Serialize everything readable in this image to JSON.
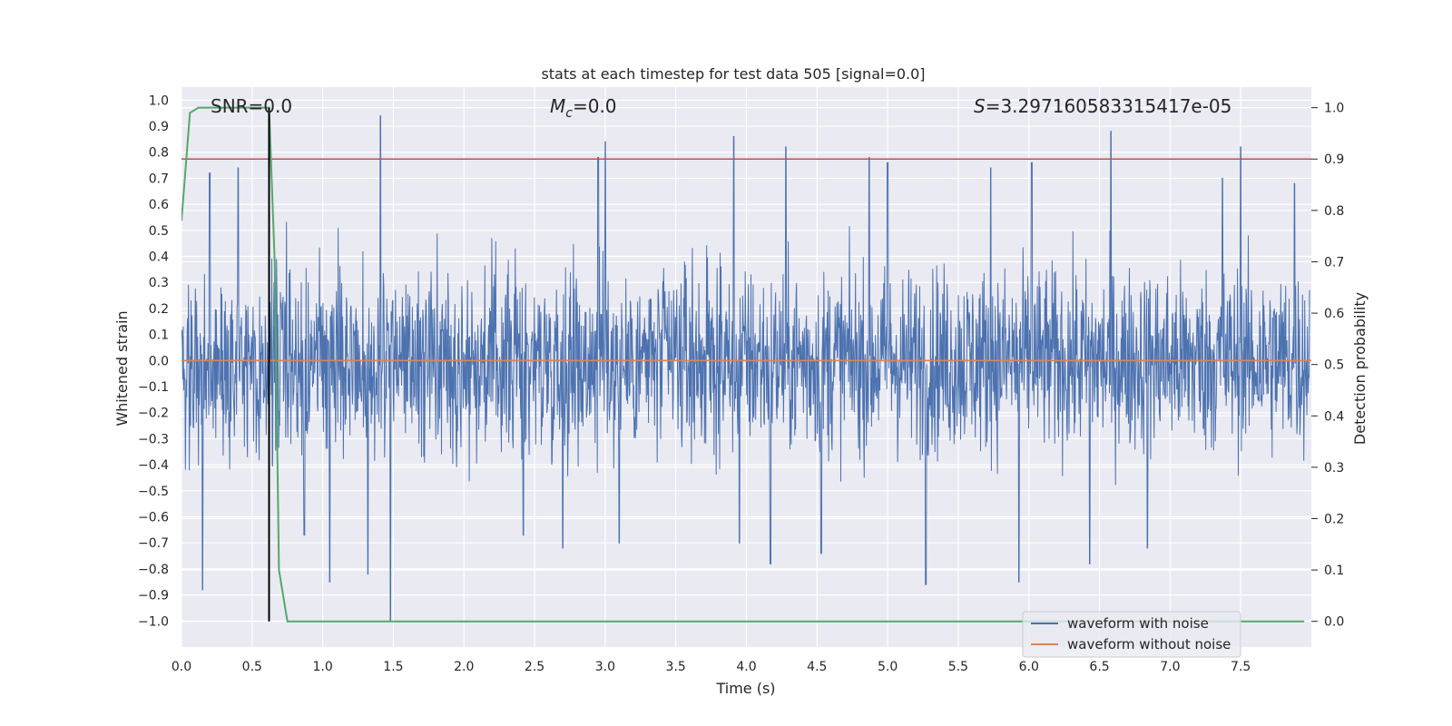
{
  "chart_data": {
    "type": "line",
    "title": "stats at each timestep for test data 505 [signal=0.0]",
    "xlabel": "Time (s)",
    "ylabel_left": "Whitened strain",
    "ylabel_right": "Detection probability",
    "xlim": [
      0.0,
      8.0
    ],
    "ylim_left": [
      -1.1,
      1.05
    ],
    "ylim_right": [
      -0.05,
      1.04
    ],
    "x_ticks": [
      0.0,
      0.5,
      1.0,
      1.5,
      2.0,
      2.5,
      3.0,
      3.5,
      4.0,
      4.5,
      5.0,
      5.5,
      6.0,
      6.5,
      7.0,
      7.5
    ],
    "x_tick_labels": [
      "0.0",
      "0.5",
      "1.0",
      "1.5",
      "2.0",
      "2.5",
      "3.0",
      "3.5",
      "4.0",
      "4.5",
      "5.0",
      "5.5",
      "6.0",
      "6.5",
      "7.0",
      "7.5"
    ],
    "y_left_ticks": [
      1.0,
      0.9,
      0.8,
      0.7,
      0.6,
      0.5,
      0.4,
      0.3,
      0.2,
      0.1,
      0.0,
      -0.1,
      -0.2,
      -0.3,
      -0.4,
      -0.5,
      -0.6,
      -0.7,
      -0.8,
      -0.9,
      -1.0
    ],
    "y_left_tick_labels": [
      "1.0",
      "0.9",
      "0.8",
      "0.7",
      "0.6",
      "0.5",
      "0.4",
      "0.3",
      "0.2",
      "0.1",
      "0.0",
      "−0.1",
      "−0.2",
      "−0.3",
      "−0.4",
      "−0.5",
      "−0.6",
      "−0.7",
      "−0.8",
      "−0.9",
      "−1.0"
    ],
    "y_right_ticks": [
      1.0,
      0.9,
      0.8,
      0.7,
      0.6,
      0.5,
      0.4,
      0.3,
      0.2,
      0.1,
      0.0
    ],
    "y_right_tick_labels": [
      "1.0",
      "0.9",
      "0.8",
      "0.7",
      "0.6",
      "0.5",
      "0.4",
      "0.3",
      "0.2",
      "0.1",
      "0.0"
    ],
    "grid": true,
    "annotations": {
      "snr": "SNR=0.0",
      "mc_symbol": "M",
      "mc_sub": "c",
      "mc_value": "=0.0",
      "s_symbol": "S",
      "s_value": "=3.297160583315417e-05"
    },
    "legend": {
      "placement": "lower-right",
      "entries": [
        {
          "label": "waveform with noise",
          "color": "#4c72b0"
        },
        {
          "label": "waveform without noise",
          "color": "#dd8452"
        }
      ]
    },
    "series": [
      {
        "name": "waveform with noise",
        "color": "#4c72b0",
        "axis": "left",
        "noise_amplitude": 0.35,
        "peaks": [
          [
            1.41,
            0.94
          ],
          [
            1.48,
            -1.0
          ],
          [
            0.15,
            -0.88
          ],
          [
            3.91,
            0.86
          ],
          [
            3.0,
            0.84
          ],
          [
            4.28,
            0.82
          ],
          [
            6.58,
            0.88
          ],
          [
            7.5,
            0.82
          ],
          [
            5.93,
            -0.85
          ],
          [
            1.05,
            -0.85
          ],
          [
            5.0,
            0.76
          ],
          [
            4.17,
            -0.78
          ],
          [
            4.53,
            -0.74
          ],
          [
            6.43,
            -0.78
          ],
          [
            2.7,
            -0.72
          ],
          [
            0.4,
            0.74
          ],
          [
            0.2,
            0.72
          ],
          [
            1.32,
            -0.82
          ],
          [
            3.95,
            -0.7
          ],
          [
            4.87,
            0.78
          ],
          [
            5.73,
            0.74
          ],
          [
            6.02,
            0.76
          ],
          [
            7.37,
            0.7
          ],
          [
            7.88,
            0.68
          ],
          [
            5.27,
            -0.86
          ],
          [
            6.84,
            -0.72
          ],
          [
            2.95,
            0.78
          ],
          [
            0.87,
            -0.67
          ],
          [
            2.42,
            -0.67
          ],
          [
            3.1,
            -0.7
          ]
        ]
      },
      {
        "name": "waveform without noise",
        "color": "#dd8452",
        "axis": "left",
        "x": [
          0.0,
          8.0
        ],
        "y": [
          0.0,
          0.0
        ]
      },
      {
        "name": "detection probability",
        "color": "#55a868",
        "axis": "right",
        "x": [
          0.0,
          0.06,
          0.12,
          0.62,
          0.66,
          0.69,
          0.75,
          7.95
        ],
        "y": [
          0.78,
          0.99,
          1.0,
          1.0,
          0.7,
          0.1,
          0.0,
          0.0
        ]
      }
    ],
    "threshold": {
      "color": "#c44e52",
      "axis": "right",
      "value": 0.9
    },
    "vertical_marker": {
      "color": "#000000",
      "x": 0.62
    },
    "background_color": "#eaeaf2",
    "grid_color": "#ffffff"
  }
}
